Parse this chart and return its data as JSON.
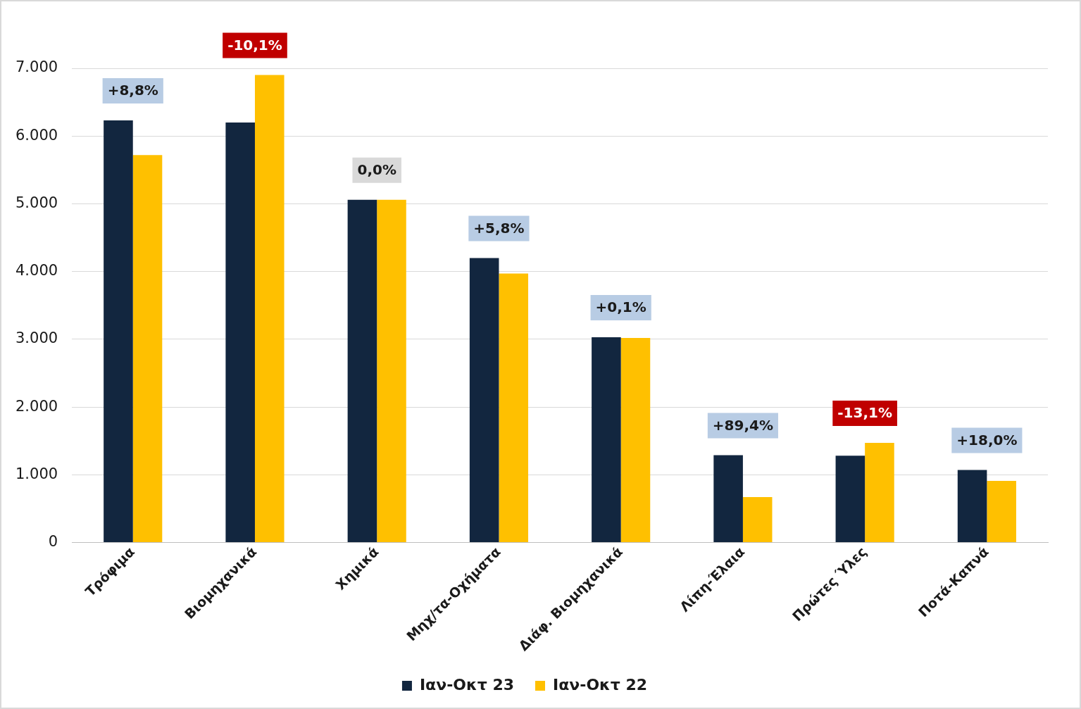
{
  "chart_data": {
    "type": "bar",
    "categories": [
      "Τρόφιμα",
      "Βιομηχανικά",
      "Χημικά",
      "Μηχ/τα-Οχήματα",
      "Διάφ. Βιομηχανικά",
      "Λίπη-Έλαια",
      "Πρώτες Ύλες",
      "Ποτά-Καπνά"
    ],
    "series": [
      {
        "name": "Ιαν-Οκτ 23",
        "color": "#12263f",
        "values": [
          6230,
          6200,
          5060,
          4200,
          3030,
          1290,
          1280,
          1070
        ]
      },
      {
        "name": "Ιαν-Οκτ 22",
        "color": "#ffc000",
        "values": [
          5720,
          6900,
          5060,
          3970,
          3020,
          670,
          1470,
          910
        ]
      }
    ],
    "ylim": [
      0,
      7000
    ],
    "yticks": [
      {
        "value": 0,
        "label": "0"
      },
      {
        "value": 1000,
        "label": "1.000"
      },
      {
        "value": 2000,
        "label": "2.000"
      },
      {
        "value": 3000,
        "label": "3.000"
      },
      {
        "value": 4000,
        "label": "4.000"
      },
      {
        "value": 5000,
        "label": "5.000"
      },
      {
        "value": 6000,
        "label": "6.000"
      },
      {
        "value": 7000,
        "label": "7.000"
      }
    ],
    "grid": "y",
    "legend": "bottom",
    "annotations": [
      "+8,8%",
      "-10,1%",
      "0,0%",
      "+5,8%",
      "+0,1%",
      "+89,4%",
      "-13,1%",
      "+18,0%"
    ]
  }
}
